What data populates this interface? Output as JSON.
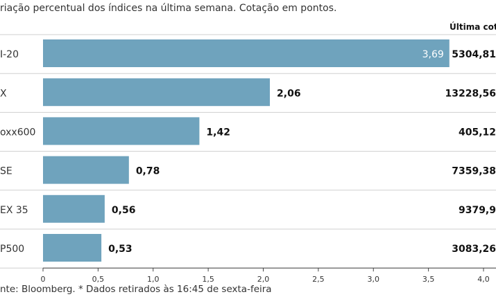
{
  "chart_data": {
    "type": "bar",
    "orientation": "horizontal",
    "subtitle": "riação percentual dos índices na última semana. Cotação em pontos.",
    "value_column_header": "Última cotaç",
    "categories": [
      "I-20",
      "X",
      "oxx600",
      "SE",
      "EX 35",
      "P500"
    ],
    "values": [
      3.69,
      2.06,
      1.42,
      0.78,
      0.56,
      0.53
    ],
    "value_labels": [
      "3,69",
      "2,06",
      "1,42",
      "0,78",
      "0,56",
      "0,53"
    ],
    "last_quote": [
      "5304,81",
      "13228,56",
      "405,12",
      "7359,38",
      "9379,9",
      "3083,26"
    ],
    "x_ticks": [
      0,
      0.5,
      1.0,
      1.5,
      2.0,
      2.5,
      3.0,
      3.5,
      4.0
    ],
    "x_tick_labels": [
      "0",
      "0,5",
      "1,0",
      "1,5",
      "2,0",
      "2,5",
      "3,0",
      "3,5",
      "4,0"
    ],
    "xlim": [
      0,
      4.0
    ],
    "bar_color": "#6fa3bd",
    "source": "nte: Bloomberg.  * Dados retirados às 16:45 de sexta-feira"
  }
}
